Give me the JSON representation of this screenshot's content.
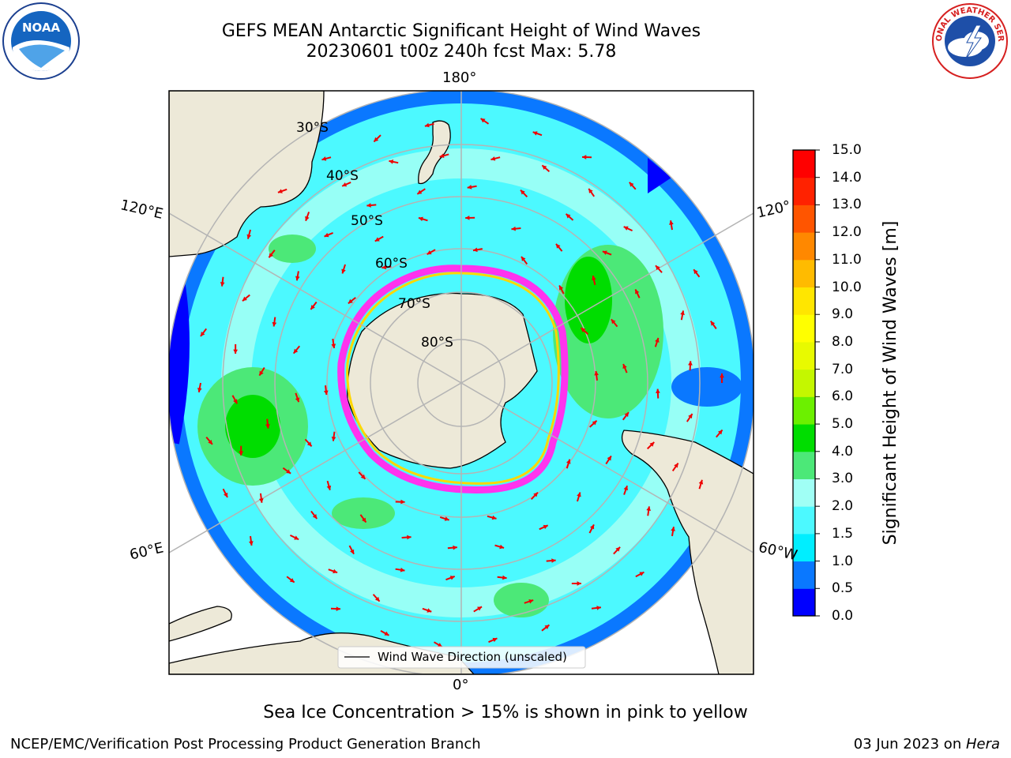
{
  "title": {
    "line1": "GEFS MEAN Antarctic Significant Height of Wind Waves",
    "line2": "20230601 t00z 240h fcst   Max: 5.78"
  },
  "logos": {
    "left": {
      "icon": "noaa-logo",
      "text": "NOAA"
    },
    "right": {
      "icon": "nws-logo",
      "text": "NATIONAL WEATHER SERVICE"
    }
  },
  "map": {
    "projection": "south-polar-stereographic",
    "lon_labels": {
      "top": "180°",
      "bottom": "0°",
      "left_upper": "120°E",
      "right_upper": "120°",
      "left_lower": "60°E",
      "right_lower": "60°W"
    },
    "lat_labels": [
      "30°S",
      "40°S",
      "50°S",
      "60°S",
      "70°S",
      "80°S"
    ],
    "legend": "Wind Wave Direction (unscaled)",
    "colors": {
      "land": "#ede9d8",
      "ice_edge": [
        "#ff33ee",
        "#ffd700"
      ]
    }
  },
  "colorbar": {
    "label": "Significant Height of Wind Waves [m]",
    "ticks": [
      "0.0",
      "0.5",
      "1.0",
      "1.5",
      "2.0",
      "3.0",
      "4.0",
      "5.0",
      "6.0",
      "7.0",
      "8.0",
      "9.0",
      "10.0",
      "11.0",
      "12.0",
      "13.0",
      "14.0",
      "15.0"
    ],
    "colors": [
      "#0000ff",
      "#0a78ff",
      "#00eeff",
      "#4cf9ff",
      "#a0fff5",
      "#4ce878",
      "#00dd00",
      "#6cf000",
      "#c4f700",
      "#e8fa00",
      "#ffff00",
      "#ffe600",
      "#ffbb00",
      "#ff8800",
      "#ff5500",
      "#ff2200",
      "#ff0000"
    ]
  },
  "captions": {
    "sea_ice": "Sea Ice Concentration > 15% is shown in pink to yellow",
    "footer_left": "NCEP/EMC/Verification Post Processing Product Generation Branch",
    "footer_date": "03 Jun 2023 on ",
    "footer_machine": "Hera"
  }
}
